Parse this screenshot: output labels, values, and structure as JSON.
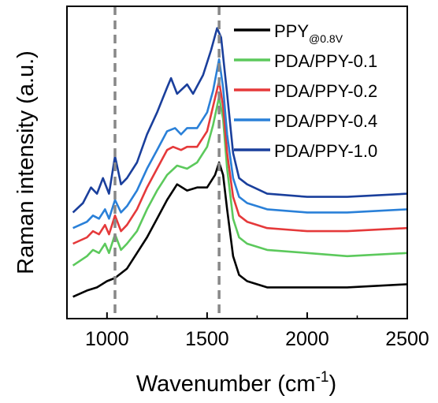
{
  "chart_data": {
    "type": "line",
    "title": "",
    "xlabel": "Wavenumber (cm",
    "xlabel_sup": "-1",
    "xlabel_close": ")",
    "ylabel": "Raman intensity (a.u.)",
    "xlim": [
      800,
      2500
    ],
    "ylim": [
      0,
      1
    ],
    "x_ticks": [
      {
        "value": 1000,
        "label": "1000"
      },
      {
        "value": 1500,
        "label": "1500"
      },
      {
        "value": 2000,
        "label": "2000"
      },
      {
        "value": 2500,
        "label": "2500"
      }
    ],
    "y_ticks_shown": false,
    "reference_lines": [
      1040,
      1560
    ],
    "legend_position": "top-right",
    "series": [
      {
        "name": "PPY",
        "name_sub": "@0.8V",
        "color": "#000000",
        "points": [
          [
            830,
            0.07
          ],
          [
            900,
            0.09
          ],
          [
            950,
            0.1
          ],
          [
            1000,
            0.12
          ],
          [
            1040,
            0.13
          ],
          [
            1100,
            0.16
          ],
          [
            1150,
            0.21
          ],
          [
            1200,
            0.26
          ],
          [
            1250,
            0.32
          ],
          [
            1300,
            0.38
          ],
          [
            1350,
            0.43
          ],
          [
            1400,
            0.41
          ],
          [
            1450,
            0.42
          ],
          [
            1500,
            0.42
          ],
          [
            1540,
            0.46
          ],
          [
            1560,
            0.5
          ],
          [
            1580,
            0.46
          ],
          [
            1600,
            0.35
          ],
          [
            1630,
            0.2
          ],
          [
            1660,
            0.14
          ],
          [
            1700,
            0.12
          ],
          [
            1800,
            0.1
          ],
          [
            2000,
            0.1
          ],
          [
            2200,
            0.1
          ],
          [
            2500,
            0.11
          ]
        ]
      },
      {
        "name": "PDA/PPY-0.1",
        "color": "#5cc95c",
        "points": [
          [
            830,
            0.17
          ],
          [
            900,
            0.2
          ],
          [
            930,
            0.22
          ],
          [
            960,
            0.21
          ],
          [
            990,
            0.24
          ],
          [
            1010,
            0.21
          ],
          [
            1040,
            0.27
          ],
          [
            1070,
            0.22
          ],
          [
            1100,
            0.24
          ],
          [
            1150,
            0.28
          ],
          [
            1200,
            0.35
          ],
          [
            1250,
            0.41
          ],
          [
            1300,
            0.46
          ],
          [
            1350,
            0.49
          ],
          [
            1400,
            0.48
          ],
          [
            1450,
            0.5
          ],
          [
            1500,
            0.55
          ],
          [
            1530,
            0.62
          ],
          [
            1560,
            0.71
          ],
          [
            1580,
            0.64
          ],
          [
            1600,
            0.48
          ],
          [
            1630,
            0.32
          ],
          [
            1660,
            0.26
          ],
          [
            1700,
            0.24
          ],
          [
            1800,
            0.22
          ],
          [
            2000,
            0.21
          ],
          [
            2200,
            0.2
          ],
          [
            2500,
            0.21
          ]
        ]
      },
      {
        "name": "PDA/PPY-0.2",
        "color": "#e5393a",
        "points": [
          [
            830,
            0.24
          ],
          [
            900,
            0.26
          ],
          [
            930,
            0.28
          ],
          [
            960,
            0.27
          ],
          [
            990,
            0.3
          ],
          [
            1010,
            0.27
          ],
          [
            1040,
            0.33
          ],
          [
            1070,
            0.28
          ],
          [
            1100,
            0.3
          ],
          [
            1150,
            0.35
          ],
          [
            1200,
            0.42
          ],
          [
            1250,
            0.48
          ],
          [
            1300,
            0.54
          ],
          [
            1330,
            0.55
          ],
          [
            1370,
            0.54
          ],
          [
            1400,
            0.55
          ],
          [
            1450,
            0.55
          ],
          [
            1500,
            0.6
          ],
          [
            1530,
            0.68
          ],
          [
            1560,
            0.76
          ],
          [
            1580,
            0.68
          ],
          [
            1600,
            0.53
          ],
          [
            1630,
            0.39
          ],
          [
            1660,
            0.33
          ],
          [
            1700,
            0.31
          ],
          [
            1800,
            0.29
          ],
          [
            2000,
            0.28
          ],
          [
            2200,
            0.28
          ],
          [
            2500,
            0.29
          ]
        ]
      },
      {
        "name": "PDA/PPY-0.4",
        "color": "#2a80d8",
        "points": [
          [
            830,
            0.29
          ],
          [
            900,
            0.31
          ],
          [
            930,
            0.33
          ],
          [
            960,
            0.32
          ],
          [
            990,
            0.35
          ],
          [
            1010,
            0.32
          ],
          [
            1040,
            0.38
          ],
          [
            1070,
            0.34
          ],
          [
            1100,
            0.36
          ],
          [
            1150,
            0.41
          ],
          [
            1200,
            0.48
          ],
          [
            1250,
            0.54
          ],
          [
            1300,
            0.6
          ],
          [
            1340,
            0.61
          ],
          [
            1370,
            0.59
          ],
          [
            1400,
            0.61
          ],
          [
            1450,
            0.61
          ],
          [
            1500,
            0.66
          ],
          [
            1530,
            0.73
          ],
          [
            1560,
            0.83
          ],
          [
            1580,
            0.74
          ],
          [
            1600,
            0.59
          ],
          [
            1630,
            0.45
          ],
          [
            1660,
            0.39
          ],
          [
            1700,
            0.37
          ],
          [
            1800,
            0.35
          ],
          [
            2000,
            0.34
          ],
          [
            2200,
            0.34
          ],
          [
            2500,
            0.35
          ]
        ]
      },
      {
        "name": "PDA/PPY-1.0",
        "color": "#1a3f9c",
        "points": [
          [
            830,
            0.34
          ],
          [
            880,
            0.37
          ],
          [
            920,
            0.42
          ],
          [
            950,
            0.4
          ],
          [
            980,
            0.45
          ],
          [
            1010,
            0.4
          ],
          [
            1040,
            0.52
          ],
          [
            1070,
            0.43
          ],
          [
            1100,
            0.45
          ],
          [
            1150,
            0.5
          ],
          [
            1200,
            0.59
          ],
          [
            1250,
            0.66
          ],
          [
            1300,
            0.74
          ],
          [
            1320,
            0.77
          ],
          [
            1350,
            0.72
          ],
          [
            1400,
            0.75
          ],
          [
            1430,
            0.72
          ],
          [
            1480,
            0.78
          ],
          [
            1520,
            0.86
          ],
          [
            1550,
            0.93
          ],
          [
            1570,
            0.9
          ],
          [
            1600,
            0.72
          ],
          [
            1630,
            0.53
          ],
          [
            1660,
            0.45
          ],
          [
            1700,
            0.43
          ],
          [
            1800,
            0.4
          ],
          [
            2000,
            0.39
          ],
          [
            2200,
            0.39
          ],
          [
            2500,
            0.4
          ]
        ]
      }
    ]
  }
}
